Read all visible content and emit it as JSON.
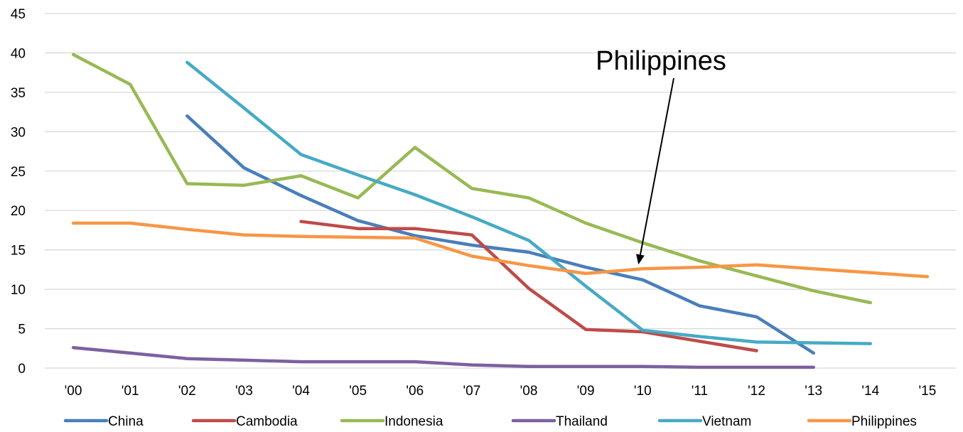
{
  "chart_data": {
    "type": "line",
    "title": "",
    "xlabel": "",
    "ylabel": "",
    "x": [
      "'00",
      "'01",
      "'02",
      "'03",
      "'04",
      "'05",
      "'06",
      "'07",
      "'08",
      "'09",
      "'10",
      "'11",
      "'12",
      "'13",
      "'14",
      "'15"
    ],
    "ylim": [
      0,
      45
    ],
    "yticks": [
      0,
      5,
      10,
      15,
      20,
      25,
      30,
      35,
      40,
      45
    ],
    "grid": true,
    "legend_position": "bottom",
    "series": [
      {
        "name": "China",
        "color": "#4a7ebb",
        "values": [
          null,
          null,
          32.0,
          25.4,
          21.9,
          18.7,
          16.8,
          15.6,
          14.7,
          12.8,
          11.2,
          7.9,
          6.5,
          1.9,
          null,
          null
        ]
      },
      {
        "name": "Cambodia",
        "color": "#be4b48",
        "values": [
          null,
          null,
          null,
          null,
          18.6,
          17.7,
          17.7,
          16.9,
          10.1,
          4.9,
          4.6,
          3.4,
          2.2,
          null,
          null,
          null
        ]
      },
      {
        "name": "Indonesia",
        "color": "#98b954",
        "values": [
          39.8,
          36.0,
          23.4,
          23.2,
          24.4,
          21.6,
          28.0,
          22.8,
          21.6,
          18.4,
          15.9,
          13.6,
          11.7,
          9.8,
          8.3,
          null
        ]
      },
      {
        "name": "Thailand",
        "color": "#7d60a0",
        "values": [
          2.6,
          1.9,
          1.2,
          1.0,
          0.8,
          0.8,
          0.8,
          0.4,
          0.2,
          0.2,
          0.2,
          0.1,
          0.1,
          0.1,
          null,
          null
        ]
      },
      {
        "name": "Vietnam",
        "color": "#46aac5",
        "values": [
          null,
          null,
          38.8,
          33.0,
          27.1,
          24.5,
          22.0,
          19.2,
          16.2,
          10.4,
          4.8,
          4.0,
          3.3,
          3.2,
          3.1,
          null
        ]
      },
      {
        "name": "Philippines",
        "color": "#f79646",
        "values": [
          18.4,
          18.4,
          17.6,
          16.9,
          16.7,
          16.6,
          16.5,
          14.2,
          13.0,
          12.0,
          12.6,
          12.8,
          13.1,
          12.6,
          12.1,
          11.6
        ]
      }
    ],
    "annotations": [
      {
        "text": "Philippines",
        "points_to": {
          "x": "'10",
          "y": 12.6
        }
      }
    ]
  }
}
